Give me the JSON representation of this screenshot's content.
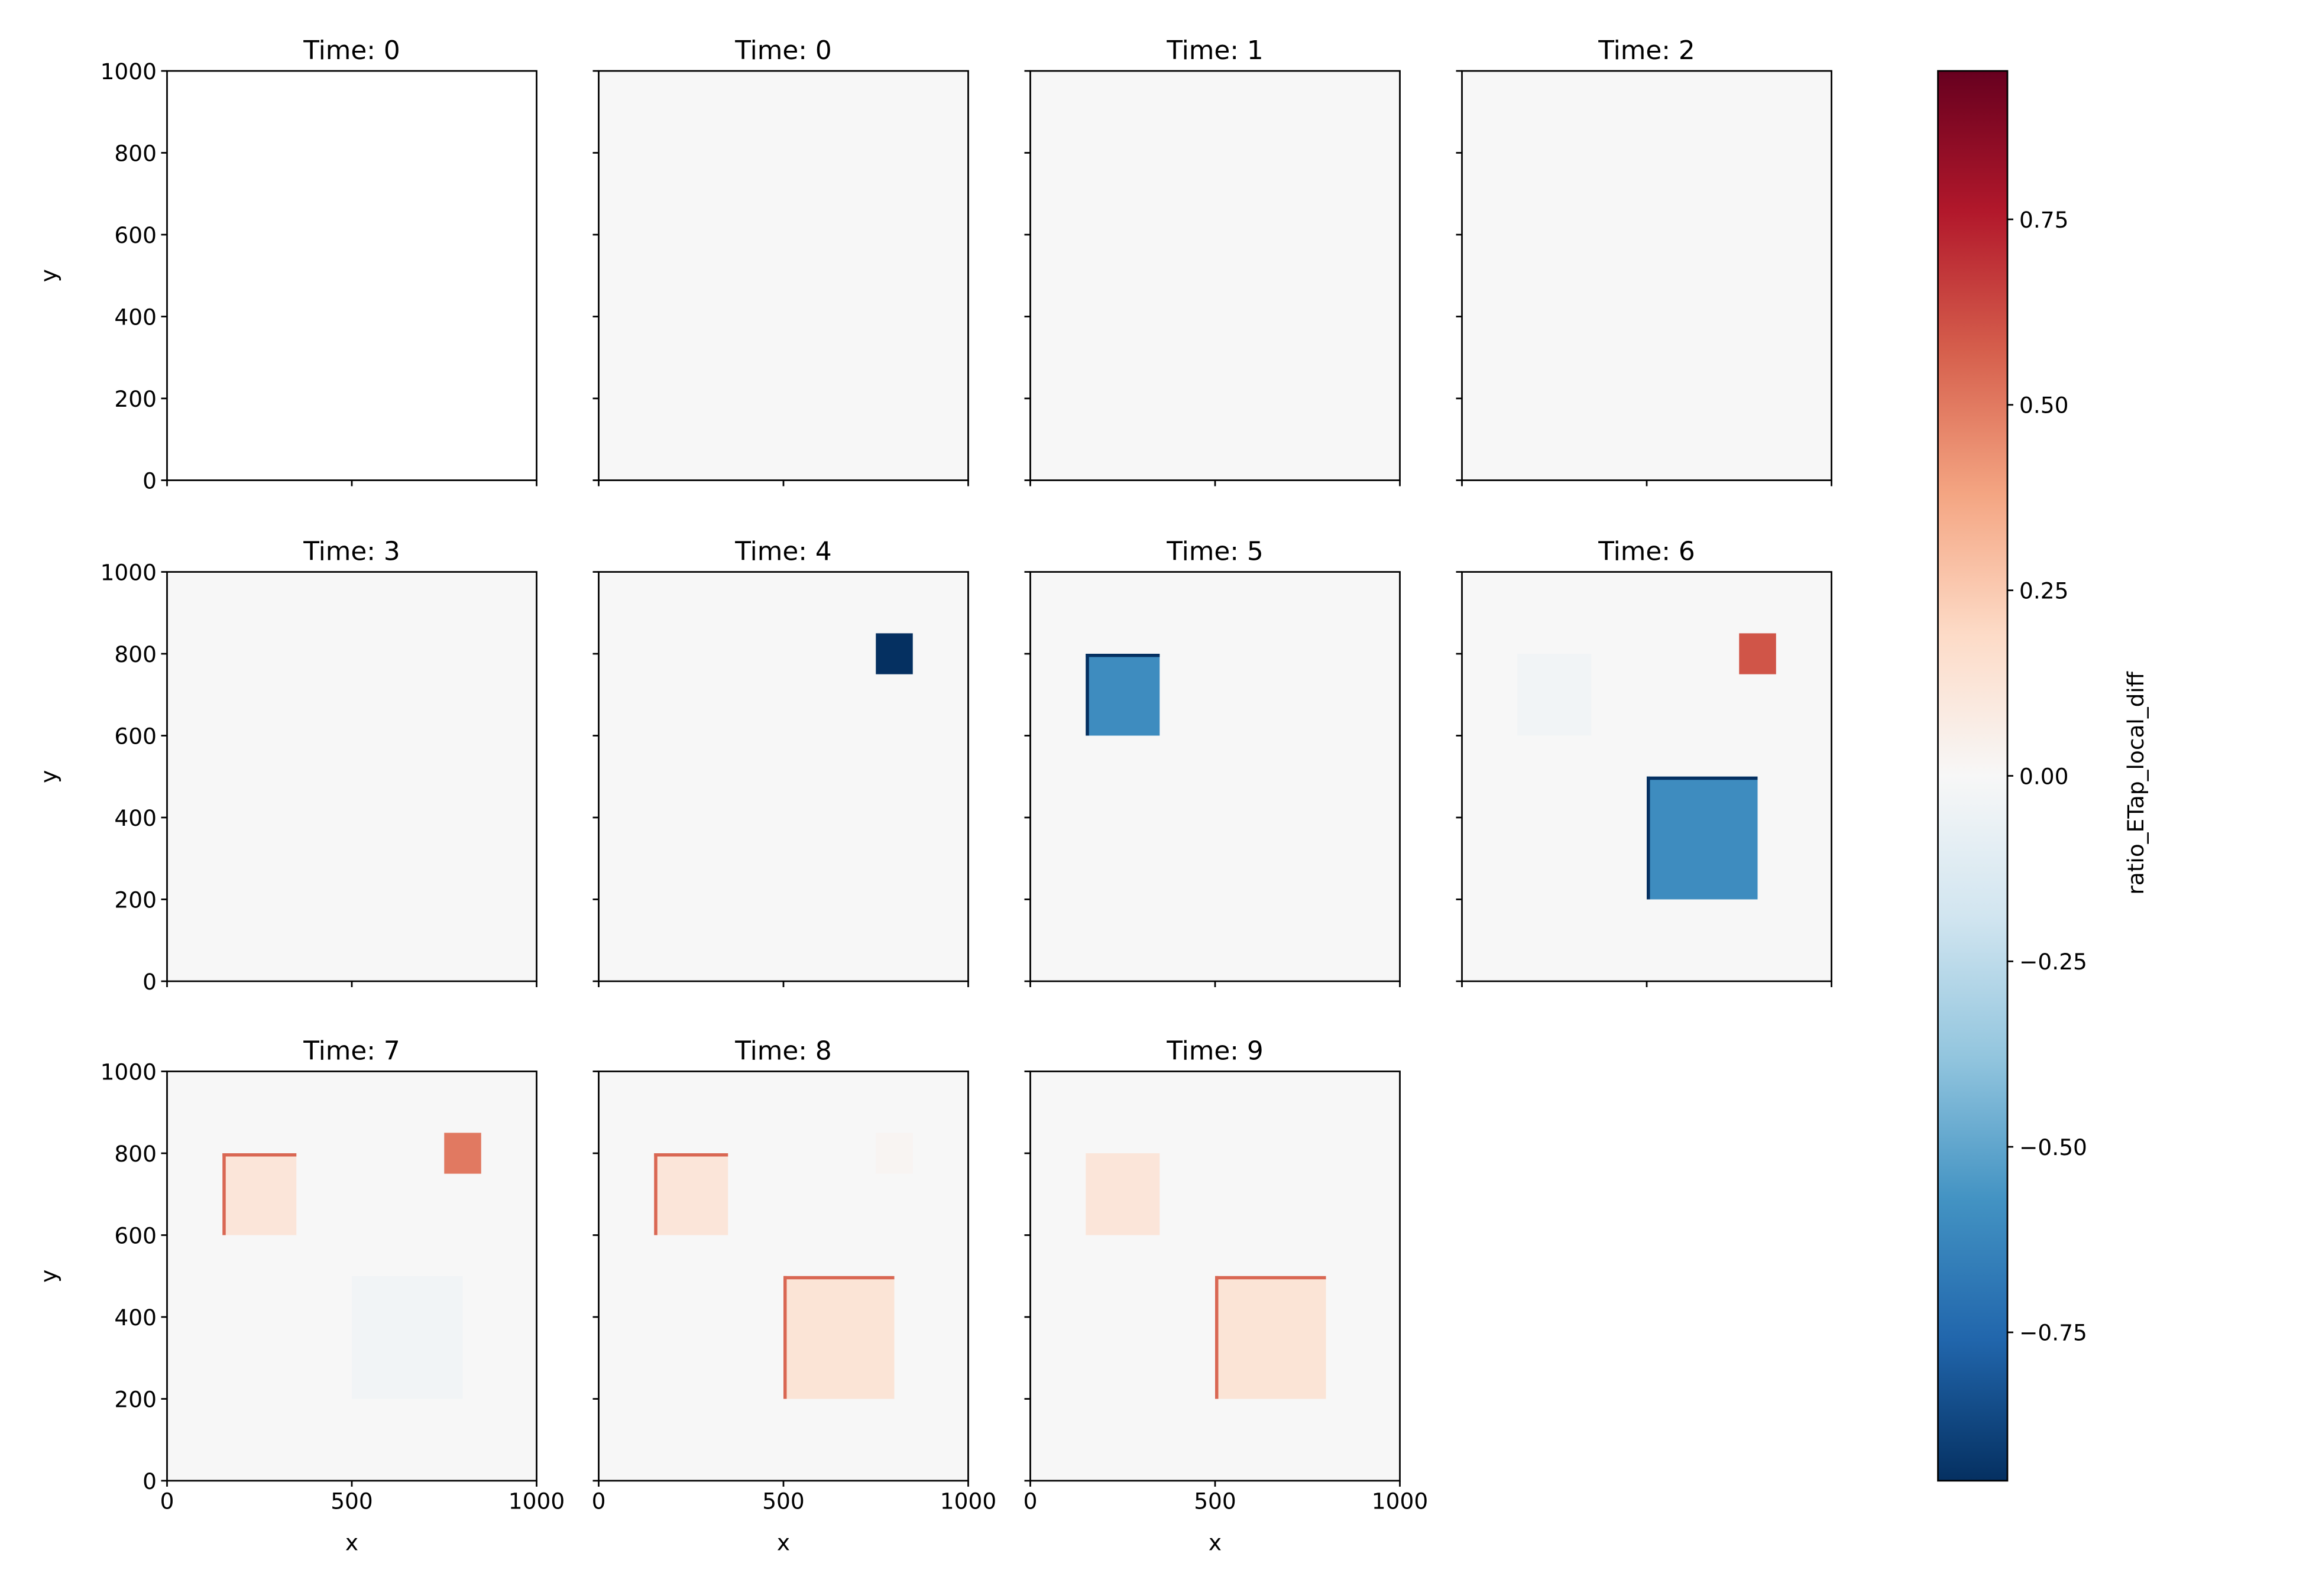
{
  "chart_data": {
    "type": "heatmap",
    "colormap": "RdBu_r",
    "colorbar": {
      "label": "ratio_ETap_local_diff",
      "vmin": -0.95,
      "vmax": 0.95,
      "ticks": [
        -0.75,
        -0.5,
        -0.25,
        0.0,
        0.25,
        0.5,
        0.75
      ],
      "tick_labels": [
        "−0.75",
        "−0.50",
        "−0.25",
        "0.00",
        "0.25",
        "0.50",
        "0.75"
      ]
    },
    "xlabel": "x",
    "ylabel": "y",
    "xlim": [
      0,
      1000
    ],
    "ylim": [
      0,
      1000
    ],
    "x_ticks": [
      0,
      500,
      1000
    ],
    "x_tick_labels": [
      "0",
      "500",
      "1000"
    ],
    "y_ticks": [
      0,
      200,
      400,
      600,
      800,
      1000
    ],
    "y_tick_labels": [
      "0",
      "200",
      "400",
      "600",
      "800",
      "1000"
    ],
    "background_value": 0.0,
    "panels": [
      {
        "title": "Time: 0",
        "empty": true,
        "regions": []
      },
      {
        "title": "Time: 0",
        "regions": []
      },
      {
        "title": "Time: 1",
        "regions": []
      },
      {
        "title": "Time: 2",
        "regions": []
      },
      {
        "title": "Time: 3",
        "regions": []
      },
      {
        "title": "Time: 4",
        "regions": [
          {
            "x0": 750,
            "x1": 850,
            "y0": 750,
            "y1": 850,
            "value": -0.95
          }
        ]
      },
      {
        "title": "Time: 5",
        "regions": [
          {
            "x0": 150,
            "x1": 350,
            "y0": 600,
            "y1": 800,
            "value": -0.6,
            "edge_value": -0.95
          }
        ]
      },
      {
        "title": "Time: 6",
        "regions": [
          {
            "x0": 150,
            "x1": 350,
            "y0": 600,
            "y1": 800,
            "value": -0.03
          },
          {
            "x0": 750,
            "x1": 850,
            "y0": 750,
            "y1": 850,
            "value": 0.6
          },
          {
            "x0": 500,
            "x1": 800,
            "y0": 200,
            "y1": 500,
            "value": -0.6,
            "edge_value": -0.95
          }
        ]
      },
      {
        "title": "Time: 7",
        "regions": [
          {
            "x0": 150,
            "x1": 350,
            "y0": 600,
            "y1": 800,
            "value": 0.12,
            "edge_value": 0.55
          },
          {
            "x0": 750,
            "x1": 850,
            "y0": 750,
            "y1": 850,
            "value": 0.5
          },
          {
            "x0": 500,
            "x1": 800,
            "y0": 200,
            "y1": 500,
            "value": -0.03
          }
        ]
      },
      {
        "title": "Time: 8",
        "regions": [
          {
            "x0": 150,
            "x1": 350,
            "y0": 600,
            "y1": 800,
            "value": 0.12,
            "edge_value": 0.55
          },
          {
            "x0": 750,
            "x1": 850,
            "y0": 750,
            "y1": 850,
            "value": 0.02
          },
          {
            "x0": 500,
            "x1": 800,
            "y0": 200,
            "y1": 500,
            "value": 0.13,
            "edge_value": 0.55
          }
        ]
      },
      {
        "title": "Time: 9",
        "regions": [
          {
            "x0": 150,
            "x1": 350,
            "y0": 600,
            "y1": 800,
            "value": 0.12
          },
          {
            "x0": 500,
            "x1": 800,
            "y0": 200,
            "y1": 500,
            "value": 0.13,
            "edge_value": 0.55
          }
        ]
      }
    ]
  }
}
